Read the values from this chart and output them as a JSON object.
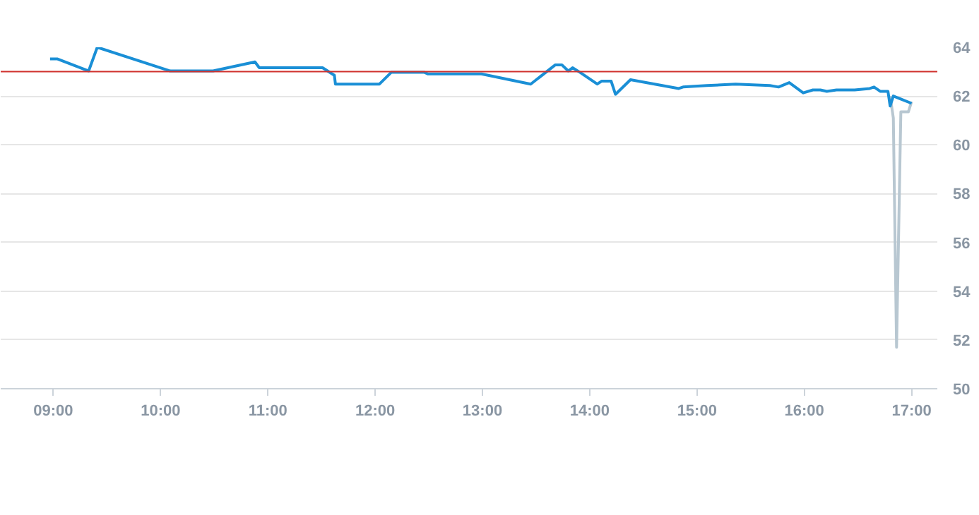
{
  "chart_data": {
    "type": "line",
    "xlim": [
      8.51,
      17.24
    ],
    "ylim": [
      50,
      64
    ],
    "xticks": [
      {
        "value": 9,
        "label": "09:00"
      },
      {
        "value": 10,
        "label": "10:00"
      },
      {
        "value": 11,
        "label": "11:00"
      },
      {
        "value": 12,
        "label": "12:00"
      },
      {
        "value": 13,
        "label": "13:00"
      },
      {
        "value": 14,
        "label": "14:00"
      },
      {
        "value": 15,
        "label": "15:00"
      },
      {
        "value": 16,
        "label": "16:00"
      },
      {
        "value": 17,
        "label": "17:00"
      }
    ],
    "yticks": [
      50,
      52,
      54,
      56,
      58,
      60,
      62,
      64
    ],
    "grid": "y",
    "line_style": "solid",
    "ref_lines": [
      {
        "axis": "y",
        "value": 63,
        "color": "#d0312d"
      }
    ],
    "series": [
      {
        "color": "#b8c7d1",
        "x": [
          16.8,
          16.83,
          16.86,
          16.9,
          16.97,
          17.0
        ],
        "values": [
          62.0,
          61.1,
          51.7,
          61.35,
          61.35,
          61.77
        ]
      },
      {
        "color": "#1a8fd6",
        "x": [
          8.97,
          9.04,
          9.33,
          9.41,
          10.09,
          10.49,
          10.88,
          10.92,
          11.51,
          11.62,
          11.63,
          12.04,
          12.15,
          12.46,
          12.49,
          12.99,
          13.45,
          13.68,
          13.74,
          13.8,
          13.84,
          13.91,
          14.07,
          14.11,
          14.2,
          14.24,
          14.38,
          14.83,
          14.87,
          15.09,
          15.36,
          15.68,
          15.76,
          15.86,
          15.99,
          16.08,
          16.15,
          16.21,
          16.3,
          16.47,
          16.61,
          16.65,
          16.71,
          16.78,
          16.8,
          16.83,
          17.0
        ],
        "values": [
          63.52,
          63.52,
          63.03,
          64.0,
          63.03,
          63.03,
          63.4,
          63.16,
          63.16,
          62.85,
          62.49,
          62.49,
          62.97,
          62.97,
          62.91,
          62.91,
          62.49,
          63.28,
          63.28,
          63.03,
          63.16,
          62.97,
          62.49,
          62.61,
          62.61,
          62.07,
          62.67,
          62.31,
          62.37,
          62.43,
          62.49,
          62.43,
          62.37,
          62.55,
          62.13,
          62.25,
          62.25,
          62.19,
          62.25,
          62.25,
          62.31,
          62.37,
          62.19,
          62.19,
          61.59,
          62.0,
          61.7
        ]
      }
    ]
  }
}
